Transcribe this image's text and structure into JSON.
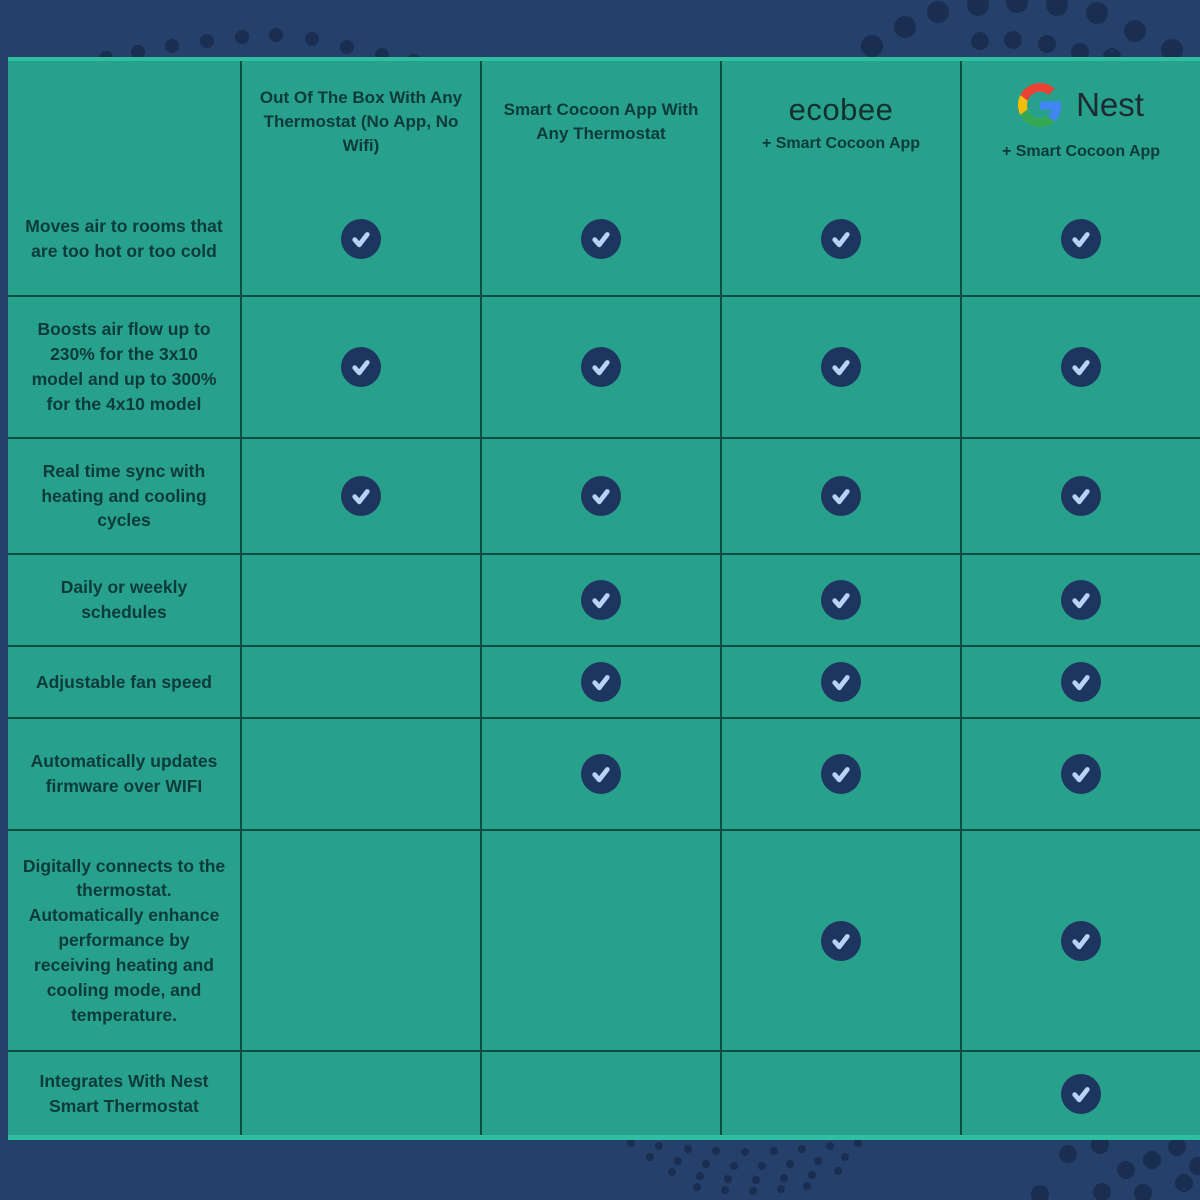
{
  "table": {
    "columns": [
      {
        "label": "Out Of The Box With Any Thermostat (No App, No Wifi)"
      },
      {
        "label": "Smart Cocoon App With Any Thermostat"
      },
      {
        "brand": "ecobee",
        "sub": "+ Smart Cocoon App"
      },
      {
        "brand": "Nest",
        "sub": "+ Smart Cocoon App"
      }
    ],
    "rows": [
      {
        "feature": "Moves air to rooms that are too hot or too cold",
        "checks": [
          true,
          true,
          true,
          true
        ]
      },
      {
        "feature": "Boosts air flow up to 230% for the 3x10 model and up to 300% for the 4x10 model",
        "checks": [
          true,
          true,
          true,
          true
        ]
      },
      {
        "feature": "Real time sync with heating and cooling cycles",
        "checks": [
          true,
          true,
          true,
          true
        ]
      },
      {
        "feature": "Daily or weekly schedules",
        "checks": [
          false,
          true,
          true,
          true
        ]
      },
      {
        "feature": "Adjustable fan speed",
        "checks": [
          false,
          true,
          true,
          true
        ]
      },
      {
        "feature": "Automatically updates firmware over WIFI",
        "checks": [
          false,
          true,
          true,
          true
        ]
      },
      {
        "feature": "Digitally connects to the thermostat. Automatically enhance performance by receiving heating and cooling mode, and temperature.",
        "checks": [
          false,
          false,
          true,
          true
        ]
      },
      {
        "feature": "Integrates With Nest Smart Thermostat",
        "checks": [
          false,
          false,
          false,
          true
        ]
      }
    ]
  },
  "icons": {
    "check": "check-icon",
    "google": "google-logo-icon"
  },
  "colors": {
    "background_navy": "#24406b",
    "decor_dot": "#1a2e52",
    "table_teal": "#27a18c",
    "grid_line": "#0e4c44",
    "table_edge_highlight": "#2fbfa0",
    "text_dark": "#0d3a3a",
    "check_circle": "#1e3560",
    "check_mark": "#b7d3f6",
    "google_red": "#ea4335",
    "google_blue": "#4285f4",
    "google_yellow": "#fbbc05",
    "google_green": "#34a853"
  }
}
